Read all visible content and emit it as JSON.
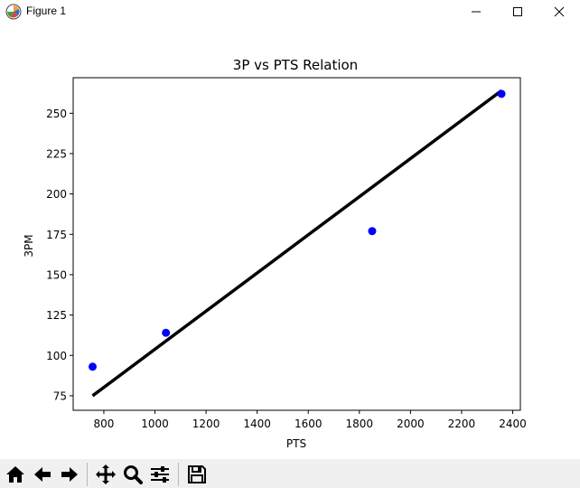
{
  "window": {
    "title": "Figure 1",
    "app_icon": "matplotlib-icon",
    "controls": [
      "minimize-icon",
      "maximize-icon",
      "close-icon"
    ]
  },
  "toolbar": {
    "buttons": [
      "home-icon",
      "back-arrow-icon",
      "forward-arrow-icon",
      "pan-icon",
      "zoom-icon",
      "configure-subplots-icon",
      "save-icon"
    ]
  },
  "chart_data": {
    "type": "scatter",
    "title": "3P vs PTS Relation",
    "xlabel": "PTS",
    "ylabel": "3PM",
    "xlim": [
      680,
      2430
    ],
    "ylim": [
      66,
      272
    ],
    "xticks": [
      800,
      1000,
      1200,
      1400,
      1600,
      1800,
      2000,
      2200,
      2400
    ],
    "yticks": [
      75,
      100,
      125,
      150,
      175,
      200,
      225,
      250
    ],
    "grid": false,
    "points": {
      "x": [
        756,
        1043,
        1850,
        2356
      ],
      "y": [
        93,
        114,
        177,
        262
      ],
      "color": "#0000ff"
    },
    "fit_line": {
      "x": [
        756,
        2356
      ],
      "y": [
        75,
        264
      ],
      "color": "#000000"
    }
  }
}
